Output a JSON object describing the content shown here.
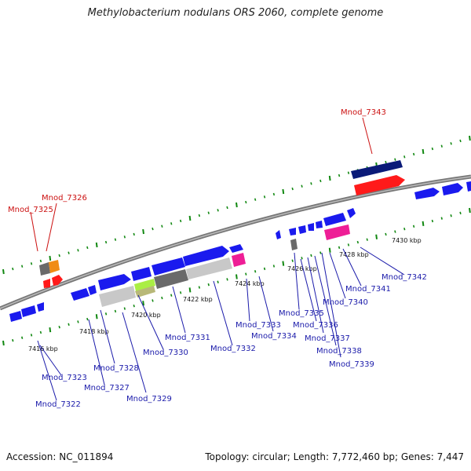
{
  "title": "Methylobacterium nodulans ORS 2060, complete genome",
  "footer": {
    "accession": "Accession: NC_011894",
    "summary": "Topology: circular; Length: 7,772,460 bp; Genes: 7,447"
  },
  "colors": {
    "forward": "#1a1aee",
    "reverse_red": "#ff1a1a",
    "navy": "#0a1a78",
    "magenta": "#ee1e96",
    "orange": "#f08c14",
    "gray_dark": "#6a6a6a",
    "gray_light": "#c8c8c8",
    "lime": "#aaee44",
    "label_blue": "#1a1aaa",
    "label_red": "#cc1111",
    "tick_green": "#118811"
  },
  "scale_ticks": [
    "7416 kbp",
    "7418 kbp",
    "7420 kbp",
    "7422 kbp",
    "7424 kbp",
    "7426 kbp",
    "7428 kbp",
    "7430 kbp"
  ],
  "gene_labels": [
    {
      "id": "Mnod_7343",
      "color": "red"
    },
    {
      "id": "Mnod_7326",
      "color": "red"
    },
    {
      "id": "Mnod_7325",
      "color": "red"
    },
    {
      "id": "Mnod_7342",
      "color": "blue"
    },
    {
      "id": "Mnod_7341",
      "color": "blue"
    },
    {
      "id": "Mnod_7340",
      "color": "blue"
    },
    {
      "id": "Mnod_7335",
      "color": "blue"
    },
    {
      "id": "Mnod_7336",
      "color": "blue"
    },
    {
      "id": "Mnod_7337",
      "color": "blue"
    },
    {
      "id": "Mnod_7338",
      "color": "blue"
    },
    {
      "id": "Mnod_7339",
      "color": "blue"
    },
    {
      "id": "Mnod_7333",
      "color": "blue"
    },
    {
      "id": "Mnod_7334",
      "color": "blue"
    },
    {
      "id": "Mnod_7331",
      "color": "blue"
    },
    {
      "id": "Mnod_7332",
      "color": "blue"
    },
    {
      "id": "Mnod_7330",
      "color": "blue"
    },
    {
      "id": "Mnod_7328",
      "color": "blue"
    },
    {
      "id": "Mnod_7329",
      "color": "blue"
    },
    {
      "id": "Mnod_7327",
      "color": "blue"
    },
    {
      "id": "Mnod_7323",
      "color": "blue"
    },
    {
      "id": "Mnod_7322",
      "color": "blue"
    }
  ]
}
